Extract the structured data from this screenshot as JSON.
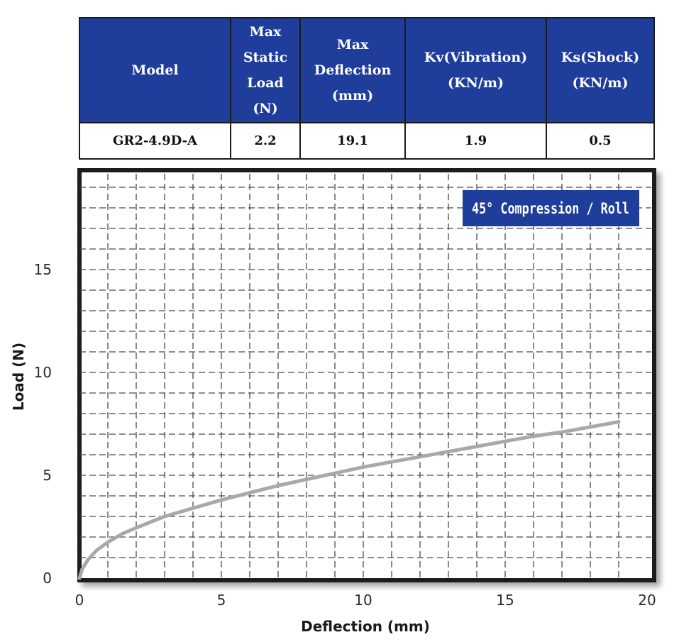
{
  "table": {
    "headers": [
      [
        "Max",
        "Static",
        "Load",
        "(N)"
      ],
      [
        "Max",
        "Deflection",
        "(mm)"
      ],
      [
        "Kv(Vibration)",
        "(KN/m)"
      ],
      [
        "Ks(Shock)",
        "(KN/m)"
      ]
    ],
    "model_header": "Model",
    "row": {
      "model": "GR2-4.9D-A",
      "max_static_load": "2.2",
      "max_deflection": "19.1",
      "kv": "1.9",
      "ks": "0.5"
    }
  },
  "colors": {
    "header_bg": "#1f3d9a",
    "legend_bg": "#1f3d9a",
    "curve": "#a9a9a9",
    "grid": "#4a4a4a",
    "frame": "#1a1a1a"
  },
  "chart_data": {
    "type": "line",
    "title": "",
    "legend": "45° Compression / Roll",
    "legend_position": "top-right",
    "xlabel": "Deflection (mm)",
    "ylabel": "Load (N)",
    "xlim": [
      0,
      20
    ],
    "ylim": [
      0,
      19
    ],
    "xticks": [
      0,
      5,
      10,
      15,
      20
    ],
    "yticks": [
      0,
      5,
      10,
      15
    ],
    "grid": true,
    "grid_style": "dashed",
    "series": [
      {
        "name": "45° Compression / Roll",
        "x": [
          0,
          0.1,
          0.3,
          0.6,
          1,
          1.5,
          2,
          3,
          4,
          5,
          6,
          7,
          8,
          9,
          10,
          11,
          12,
          13,
          14,
          15,
          16,
          17,
          18,
          19
        ],
        "y": [
          0,
          0.45,
          0.9,
          1.35,
          1.75,
          2.15,
          2.45,
          3.0,
          3.4,
          3.8,
          4.15,
          4.5,
          4.8,
          5.1,
          5.4,
          5.65,
          5.9,
          6.15,
          6.4,
          6.65,
          6.9,
          7.1,
          7.35,
          7.6
        ]
      }
    ]
  }
}
